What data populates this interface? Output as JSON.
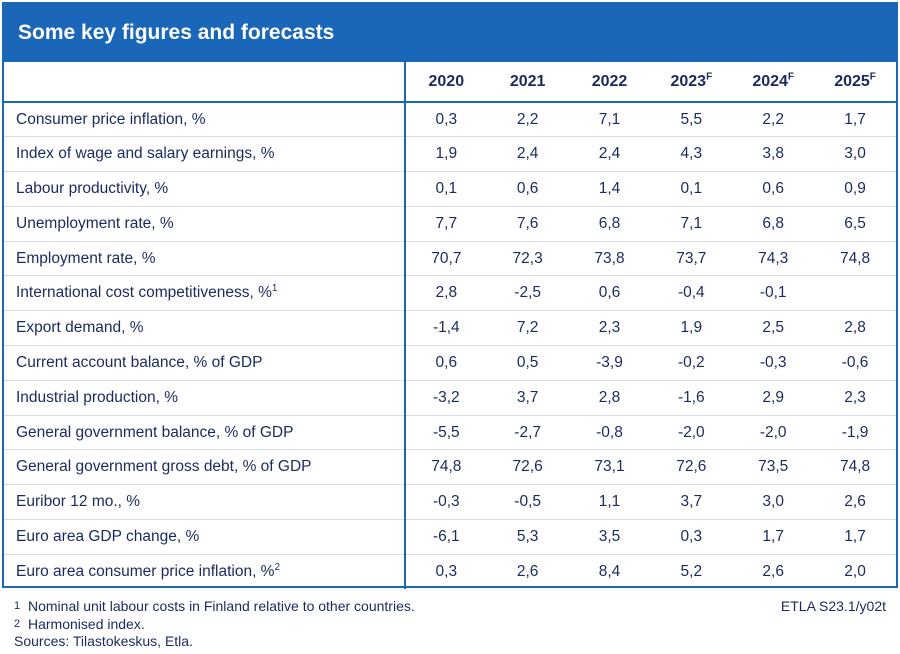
{
  "chart_data": {
    "type": "table",
    "title": "Some key figures and forecasts",
    "columns": [
      {
        "year": "2020",
        "mark": ""
      },
      {
        "year": "2021",
        "mark": ""
      },
      {
        "year": "2022",
        "mark": ""
      },
      {
        "year": "2023",
        "mark": "F"
      },
      {
        "year": "2024",
        "mark": "F"
      },
      {
        "year": "2025",
        "mark": "F"
      }
    ],
    "rows": [
      {
        "label": "Consumer price inflation, %",
        "note": "",
        "values": [
          "0,3",
          "2,2",
          "7,1",
          "5,5",
          "2,2",
          "1,7"
        ]
      },
      {
        "label": "Index of wage and salary earnings, %",
        "note": "",
        "values": [
          "1,9",
          "2,4",
          "2,4",
          "4,3",
          "3,8",
          "3,0"
        ]
      },
      {
        "label": "Labour productivity, %",
        "note": "",
        "values": [
          "0,1",
          "0,6",
          "1,4",
          "0,1",
          "0,6",
          "0,9"
        ]
      },
      {
        "label": "Unemployment rate, %",
        "note": "",
        "values": [
          "7,7",
          "7,6",
          "6,8",
          "7,1",
          "6,8",
          "6,5"
        ]
      },
      {
        "label": "Employment rate, %",
        "note": "",
        "values": [
          "70,7",
          "72,3",
          "73,8",
          "73,7",
          "74,3",
          "74,8"
        ]
      },
      {
        "label": "International cost competitiveness, %",
        "note": "1",
        "values": [
          "2,8",
          "-2,5",
          "0,6",
          "-0,4",
          "-0,1",
          ""
        ]
      },
      {
        "label": "Export demand, %",
        "note": "",
        "values": [
          "-1,4",
          "7,2",
          "2,3",
          "1,9",
          "2,5",
          "2,8"
        ]
      },
      {
        "label": "Current account balance, % of GDP",
        "note": "",
        "values": [
          "0,6",
          "0,5",
          "-3,9",
          "-0,2",
          "-0,3",
          "-0,6"
        ]
      },
      {
        "label": "Industrial production, %",
        "note": "",
        "values": [
          "-3,2",
          "3,7",
          "2,8",
          "-1,6",
          "2,9",
          "2,3"
        ]
      },
      {
        "label": "General government balance, % of GDP",
        "note": "",
        "values": [
          "-5,5",
          "-2,7",
          "-0,8",
          "-2,0",
          "-2,0",
          "-1,9"
        ]
      },
      {
        "label": "General government gross debt, % of GDP",
        "note": "",
        "values": [
          "74,8",
          "72,6",
          "73,1",
          "72,6",
          "73,5",
          "74,8"
        ]
      },
      {
        "label": "Euribor 12 mo., %",
        "note": "",
        "values": [
          "-0,3",
          "-0,5",
          "1,1",
          "3,7",
          "3,0",
          "2,6"
        ]
      },
      {
        "label": "Euro area GDP change, %",
        "note": "",
        "values": [
          "-6,1",
          "5,3",
          "3,5",
          "0,3",
          "1,7",
          "1,7"
        ]
      },
      {
        "label": "Euro area consumer price inflation, %",
        "note": "2",
        "values": [
          "0,3",
          "2,6",
          "8,4",
          "5,2",
          "2,6",
          "2,0"
        ]
      }
    ],
    "footnotes": [
      {
        "mark": "1",
        "text": "Nominal unit labour costs in Finland relative to other countries."
      },
      {
        "mark": "2",
        "text": "Harmonised index."
      }
    ],
    "sources": "Sources: Tilastokeskus, Etla.",
    "source_id": "ETLA S23.1/y02t"
  },
  "colors": {
    "accent": "#1a66b8",
    "text": "#1b2a5e",
    "row_divider": "#d6dbe6"
  }
}
